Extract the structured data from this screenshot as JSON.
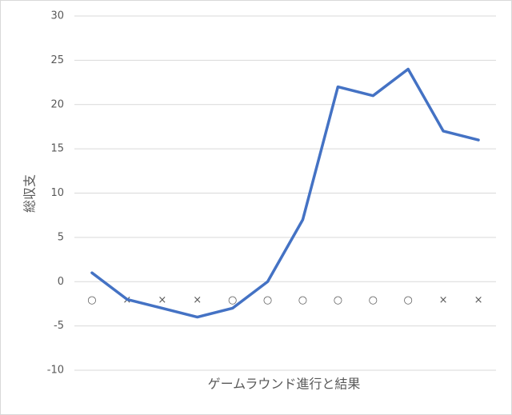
{
  "chart_data": {
    "type": "line",
    "x_label": "ゲームラウンド進行と結果",
    "y_label": "総収支",
    "categories": [
      "○",
      "×",
      "×",
      "×",
      "○",
      "○",
      "○",
      "○",
      "○",
      "○",
      "×",
      "×"
    ],
    "values": [
      1,
      -2,
      -3,
      -4,
      -3,
      0,
      7,
      22,
      21,
      24,
      17,
      16
    ],
    "color": "#4472c4",
    "ylim": [
      -10,
      30
    ],
    "yticks": [
      -10,
      -5,
      0,
      5,
      10,
      15,
      20,
      25,
      30
    ],
    "grid": true
  }
}
